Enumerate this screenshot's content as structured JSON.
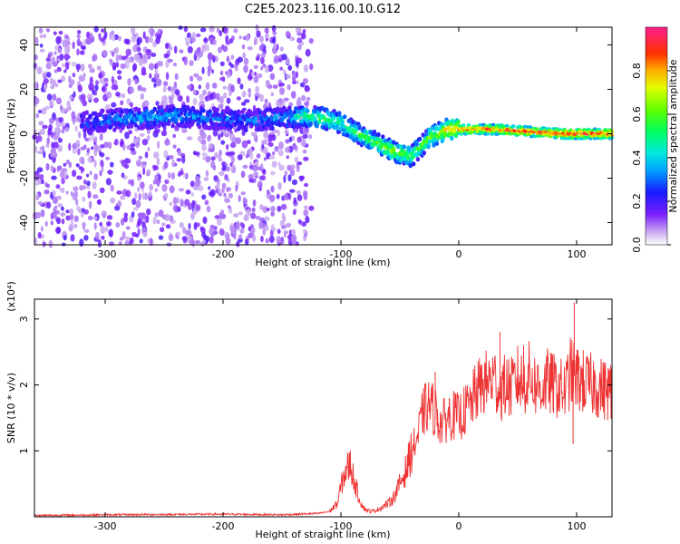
{
  "title": "C2E5.2023.116.00.10.G12",
  "chart_data": [
    {
      "type": "heatmap",
      "xlabel": "Height of straight line (km)",
      "ylabel": "Frequency (Hz)",
      "xlim": [
        -360,
        130
      ],
      "ylim": [
        -50,
        48
      ],
      "x_ticks": [
        -300,
        -200,
        -100,
        0,
        100
      ],
      "x_tick_labels": [
        "-300",
        "-200",
        "-100",
        "0",
        "100"
      ],
      "y_ticks": [
        -40,
        -20,
        0,
        20,
        40
      ],
      "y_tick_labels": [
        "-40",
        "-20",
        "0",
        "20",
        "40"
      ],
      "colorbar": {
        "label": "Normalized spectral amplitude",
        "range": [
          0,
          1
        ],
        "ticks": [
          0.0,
          0.2,
          0.4,
          0.6,
          0.8
        ],
        "tick_labels": [
          "0.0",
          "0.2",
          "0.4",
          "0.6",
          "0.8"
        ],
        "colormap": "rainbow"
      },
      "noise_region_x": [
        -360,
        -125
      ],
      "ridge": {
        "x": [
          -320,
          -300,
          -270,
          -240,
          -210,
          -180,
          -150,
          -130,
          -115,
          -100,
          -85,
          -70,
          -55,
          -40,
          -25,
          -10,
          0,
          30,
          60,
          90,
          130
        ],
        "y": [
          5,
          6,
          7,
          8,
          7,
          6,
          7,
          8,
          7,
          5,
          0,
          -4,
          -8,
          -10,
          -2,
          2,
          2,
          2,
          1,
          0,
          0
        ],
        "amplitude": [
          0.25,
          0.3,
          0.35,
          0.35,
          0.3,
          0.3,
          0.35,
          0.5,
          0.55,
          0.5,
          0.55,
          0.6,
          0.65,
          0.55,
          0.6,
          0.75,
          0.85,
          0.9,
          0.9,
          0.95,
          0.95
        ]
      },
      "grid": false
    },
    {
      "type": "line",
      "xlabel": "Height of straight line (km)",
      "ylabel": "SNR (10 * v/v)",
      "y_scale_note": "(x10⁴)",
      "xlim": [
        -360,
        130
      ],
      "ylim": [
        0,
        3.3
      ],
      "x_ticks": [
        -300,
        -200,
        -100,
        0,
        100
      ],
      "x_tick_labels": [
        "-300",
        "-200",
        "-100",
        "0",
        "100"
      ],
      "y_ticks": [
        1,
        2,
        3
      ],
      "y_tick_labels": [
        "1",
        "2",
        "3"
      ],
      "color": "#ee3333",
      "x": [
        -360,
        -300,
        -200,
        -150,
        -120,
        -110,
        -103,
        -100,
        -96,
        -92,
        -88,
        -84,
        -80,
        -75,
        -70,
        -65,
        -60,
        -55,
        -50,
        -45,
        -40,
        -35,
        -30,
        -25,
        -20,
        -15,
        -10,
        -5,
        0,
        5,
        10,
        15,
        20,
        25,
        30,
        35,
        40,
        45,
        50,
        55,
        60,
        65,
        70,
        75,
        80,
        85,
        90,
        95,
        100,
        105,
        110,
        115,
        120,
        130
      ],
      "y": [
        0.02,
        0.03,
        0.04,
        0.03,
        0.05,
        0.08,
        0.2,
        0.45,
        0.7,
        0.8,
        0.5,
        0.25,
        0.12,
        0.08,
        0.1,
        0.15,
        0.2,
        0.3,
        0.5,
        0.7,
        1.0,
        1.2,
        1.6,
        1.7,
        1.6,
        1.4,
        1.5,
        1.55,
        1.5,
        1.6,
        1.7,
        1.9,
        2.0,
        2.05,
        2.1,
        1.9,
        2.0,
        1.95,
        2.1,
        2.0,
        2.15,
        2.0,
        1.95,
        2.05,
        2.0,
        1.95,
        1.9,
        2.2,
        2.1,
        2.05,
        2.0,
        2.0,
        1.95,
        1.9
      ],
      "spikes": [
        {
          "x": 98,
          "y": 3.25
        },
        {
          "x": 97,
          "y": 1.1
        },
        {
          "x": 35,
          "y": 2.8
        },
        {
          "x": 55,
          "y": 2.6
        },
        {
          "x": -20,
          "y": 2.2
        },
        {
          "x": -8,
          "y": 1.8
        }
      ],
      "grid": false
    }
  ]
}
